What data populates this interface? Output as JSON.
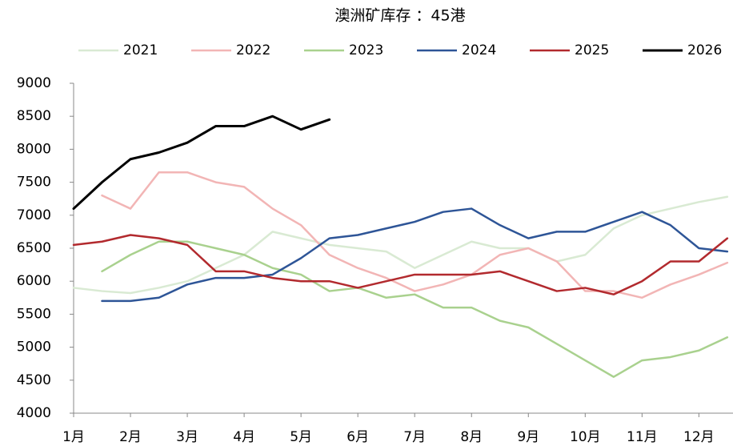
{
  "chart_data": {
    "type": "line",
    "title": "澳洲矿库存 ：45港",
    "x": [
      1,
      1.5,
      2,
      2.5,
      3,
      3.5,
      4,
      4.5,
      5,
      5.5,
      6,
      6.5,
      7,
      7.5,
      8,
      8.5,
      9,
      9.5,
      10,
      10.5,
      11,
      11.5,
      12,
      12.5
    ],
    "xlim": [
      1,
      12.6
    ],
    "xticks": [
      {
        "value": 1,
        "label": "1月"
      },
      {
        "value": 2,
        "label": "2月"
      },
      {
        "value": 3,
        "label": "3月"
      },
      {
        "value": 4,
        "label": "4月"
      },
      {
        "value": 5,
        "label": "5月"
      },
      {
        "value": 6,
        "label": "6月"
      },
      {
        "value": 7,
        "label": "7月"
      },
      {
        "value": 8,
        "label": "8月"
      },
      {
        "value": 9,
        "label": "9月"
      },
      {
        "value": 10,
        "label": "10月"
      },
      {
        "value": 11,
        "label": "11月"
      },
      {
        "value": 12,
        "label": "12月"
      }
    ],
    "ylim": [
      4000,
      9000
    ],
    "yticks": [
      4000,
      4500,
      5000,
      5500,
      6000,
      6500,
      7000,
      7500,
      8000,
      8500,
      9000
    ],
    "legend": "top",
    "series": [
      {
        "name": "2021",
        "color": "#d9ead3",
        "width": 2.5,
        "values": [
          5900,
          5850,
          5820,
          5900,
          6000,
          6200,
          6400,
          6750,
          6650,
          6550,
          6500,
          6450,
          6200,
          6400,
          6600,
          6500,
          6500,
          6300,
          6400,
          6800,
          7000,
          7100,
          7200,
          7280
        ]
      },
      {
        "name": "2022",
        "color": "#f2b5b5",
        "width": 2.5,
        "values": [
          null,
          7300,
          7100,
          7650,
          7650,
          7500,
          7430,
          7100,
          6850,
          6400,
          6200,
          6050,
          5850,
          5950,
          6100,
          6400,
          6500,
          6300,
          5850,
          5850,
          5750,
          5950,
          6100,
          6280
        ]
      },
      {
        "name": "2023",
        "color": "#a9d18e",
        "width": 2.5,
        "values": [
          null,
          6150,
          6400,
          6600,
          6600,
          6500,
          6400,
          6200,
          6100,
          5850,
          5900,
          5750,
          5800,
          5600,
          5600,
          5400,
          5300,
          5050,
          4800,
          4550,
          4800,
          4850,
          4950,
          5150
        ]
      },
      {
        "name": "2024",
        "color": "#2e5597",
        "width": 2.5,
        "values": [
          null,
          5700,
          5700,
          5750,
          5950,
          6050,
          6050,
          6100,
          6350,
          6650,
          6700,
          6800,
          6900,
          7050,
          7100,
          6850,
          6650,
          6750,
          6750,
          6900,
          7050,
          6850,
          6500,
          6450
        ]
      },
      {
        "name": "2025",
        "color": "#b22a2e",
        "width": 2.5,
        "values": [
          6550,
          6600,
          6700,
          6650,
          6550,
          6150,
          6150,
          6050,
          6000,
          6000,
          5900,
          6000,
          6100,
          6100,
          6100,
          6150,
          6000,
          5850,
          5900,
          5800,
          6000,
          6300,
          6300,
          6650
        ]
      },
      {
        "name": "2026",
        "color": "#000000",
        "width": 3,
        "values": [
          7100,
          7500,
          7850,
          7950,
          8100,
          8350,
          8350,
          8500,
          8300,
          8450,
          null,
          null,
          null,
          null,
          null,
          null,
          null,
          null,
          null,
          null,
          null,
          null,
          null,
          null
        ]
      }
    ]
  }
}
